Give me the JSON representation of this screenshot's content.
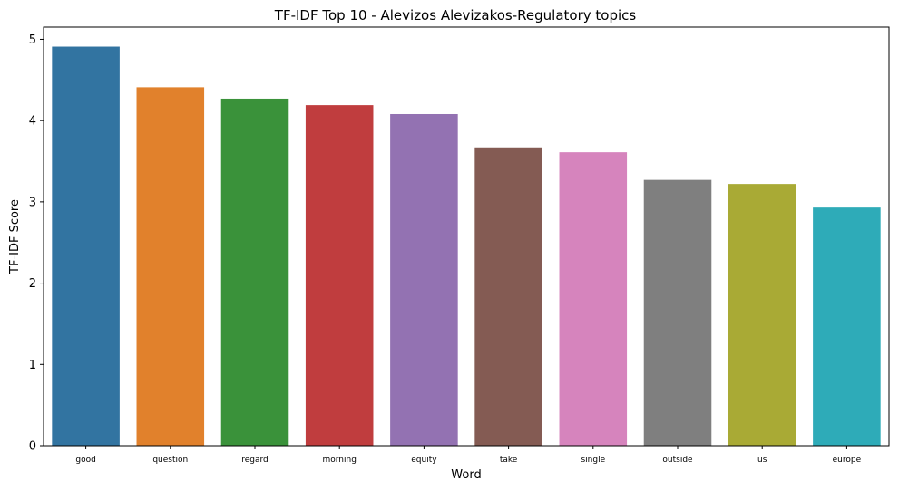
{
  "chart_data": {
    "type": "bar",
    "title": "TF-IDF Top 10 - Alevizos Alevizakos-Regulatory topics",
    "xlabel": "Word",
    "ylabel": "TF-IDF Score",
    "ylim": [
      0,
      5.15
    ],
    "yticks": [
      0,
      1,
      2,
      3,
      4,
      5
    ],
    "grid": false,
    "categories": [
      "good",
      "question",
      "regard",
      "morning",
      "equity",
      "take",
      "single",
      "outside",
      "us",
      "europe"
    ],
    "values": [
      4.91,
      4.41,
      4.27,
      4.19,
      4.08,
      3.67,
      3.61,
      3.27,
      3.22,
      2.93
    ],
    "colors": [
      "#3274a1",
      "#e1812c",
      "#3a923a",
      "#c03d3e",
      "#9372b2",
      "#845b53",
      "#d684bd",
      "#7f7f7f",
      "#a9aa35",
      "#2eabb8"
    ]
  }
}
